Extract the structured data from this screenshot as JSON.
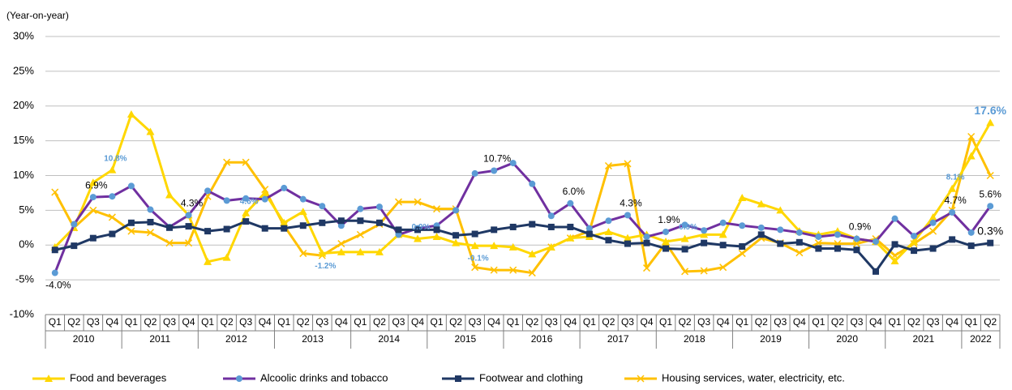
{
  "chart_data": {
    "type": "line",
    "y_axis_label": "(Year-on-year)",
    "categories": [
      "Q1",
      "Q2",
      "Q3",
      "Q4",
      "Q1",
      "Q2",
      "Q3",
      "Q4",
      "Q1",
      "Q2",
      "Q3",
      "Q4",
      "Q1",
      "Q2",
      "Q3",
      "Q4",
      "Q1",
      "Q2",
      "Q3",
      "Q4",
      "Q1",
      "Q2",
      "Q3",
      "Q4",
      "Q1",
      "Q2",
      "Q3",
      "Q4",
      "Q1",
      "Q2",
      "Q3",
      "Q4",
      "Q1",
      "Q2",
      "Q3",
      "Q4",
      "Q1",
      "Q2",
      "Q3",
      "Q4",
      "Q1",
      "Q2",
      "Q3",
      "Q4",
      "Q1",
      "Q2",
      "Q3",
      "Q4",
      "Q1",
      "Q2"
    ],
    "years": [
      "2010",
      "2011",
      "2012",
      "2013",
      "2014",
      "2015",
      "2016",
      "2017",
      "2018",
      "2019",
      "2020",
      "2021",
      "2022"
    ],
    "ylim": [
      -10,
      30
    ],
    "yticks": [
      {
        "value": -10,
        "label": "-10%"
      },
      {
        "value": -5,
        "label": "-5%"
      },
      {
        "value": 0,
        "label": "0%"
      },
      {
        "value": 5,
        "label": "5%"
      },
      {
        "value": 10,
        "label": "10%"
      },
      {
        "value": 15,
        "label": "15%"
      },
      {
        "value": 20,
        "label": "20%"
      },
      {
        "value": 25,
        "label": "25%"
      },
      {
        "value": 30,
        "label": "30%"
      }
    ],
    "grid": true,
    "legend": "bottom",
    "series": [
      {
        "name": "Food and beverages",
        "color": "#ffd700",
        "marker": "triangle",
        "label_color": "#5b9bd5",
        "values": [
          -0.3,
          2.5,
          9.0,
          10.8,
          18.8,
          16.3,
          7.2,
          4.3,
          -2.4,
          -1.8,
          4.6,
          7.5,
          3.2,
          4.8,
          -1.2,
          -1.0,
          -1.0,
          -1.0,
          1.5,
          0.9,
          1.2,
          0.3,
          -0.1,
          -0.1,
          -0.3,
          -1.3,
          -0.3,
          1.0,
          1.2,
          1.9,
          1.0,
          1.5,
          0.5,
          0.9,
          1.5,
          1.5,
          6.8,
          5.9,
          5.0,
          2.0,
          1.5,
          2.0,
          0.9,
          0.5,
          -2.3,
          0.5,
          4.0,
          8.1,
          12.8,
          17.6
        ],
        "value_labels": [
          null,
          null,
          null,
          "10.8%",
          null,
          null,
          null,
          null,
          null,
          null,
          "4.6%",
          null,
          null,
          null,
          "-1.2%",
          null,
          null,
          null,
          null,
          "0.9%",
          null,
          null,
          "-0.1%",
          null,
          null,
          null,
          null,
          null,
          null,
          null,
          null,
          null,
          null,
          "0.9%",
          null,
          null,
          null,
          null,
          null,
          null,
          null,
          null,
          null,
          null,
          null,
          null,
          null,
          "8.1%",
          null,
          "17.6%"
        ]
      },
      {
        "name": "Alcoolic drinks and tobacco",
        "color": "#7030a0",
        "marker": "circle",
        "marker_color": "#5b9bd5",
        "label_color": "#000000",
        "values": [
          -4.0,
          3.0,
          6.9,
          7.0,
          8.5,
          5.1,
          2.6,
          4.3,
          7.8,
          6.4,
          6.7,
          6.6,
          8.2,
          6.6,
          5.6,
          2.8,
          5.2,
          5.5,
          1.5,
          2.4,
          2.8,
          5.0,
          10.3,
          10.7,
          11.8,
          8.8,
          4.2,
          6.0,
          2.4,
          3.5,
          4.3,
          1.2,
          1.9,
          2.9,
          2.1,
          3.2,
          2.8,
          2.5,
          2.2,
          1.8,
          1.2,
          1.5,
          0.9,
          0.5,
          3.8,
          1.3,
          3.2,
          4.7,
          1.8,
          5.6
        ],
        "value_labels": [
          "-4.0%",
          null,
          "6.9%",
          null,
          null,
          null,
          null,
          "4.3%",
          null,
          null,
          null,
          null,
          null,
          null,
          null,
          null,
          null,
          null,
          null,
          null,
          null,
          null,
          null,
          "10.7%",
          null,
          null,
          null,
          "6.0%",
          null,
          null,
          "4.3%",
          null,
          "1.9%",
          null,
          null,
          null,
          null,
          null,
          null,
          null,
          null,
          null,
          "0.9%",
          null,
          null,
          null,
          null,
          "4.7%",
          null,
          "5.6%"
        ]
      },
      {
        "name": "Footwear and clothing",
        "color": "#1f3864",
        "marker": "square",
        "label_color": "#000000",
        "values": [
          -0.7,
          -0.1,
          1.0,
          1.6,
          3.2,
          3.3,
          2.5,
          2.7,
          2.0,
          2.3,
          3.4,
          2.4,
          2.4,
          2.8,
          3.2,
          3.5,
          3.5,
          3.2,
          2.2,
          2.2,
          2.2,
          1.4,
          1.6,
          2.2,
          2.6,
          3.0,
          2.6,
          2.6,
          1.6,
          0.7,
          0.2,
          0.3,
          -0.5,
          -0.6,
          0.3,
          0.0,
          -0.2,
          1.5,
          0.2,
          0.4,
          -0.5,
          -0.5,
          -0.7,
          -3.8,
          0.1,
          -0.8,
          -0.5,
          0.8,
          -0.1,
          0.3
        ],
        "value_labels": [
          null,
          null,
          null,
          null,
          null,
          null,
          null,
          null,
          null,
          null,
          null,
          null,
          null,
          null,
          null,
          null,
          null,
          null,
          null,
          null,
          null,
          null,
          null,
          null,
          null,
          null,
          null,
          null,
          null,
          null,
          null,
          null,
          null,
          null,
          null,
          null,
          null,
          null,
          null,
          null,
          null,
          null,
          null,
          null,
          null,
          null,
          null,
          null,
          null,
          "0.3%"
        ]
      },
      {
        "name": "Housing services, water, electricity, etc.",
        "color": "#ffc000",
        "marker": "x",
        "label_color": "#000000",
        "values": [
          7.6,
          2.5,
          5.0,
          4.0,
          2.0,
          1.8,
          0.3,
          0.3,
          7.0,
          11.9,
          11.9,
          8.0,
          2.8,
          -1.2,
          -1.5,
          0.2,
          1.5,
          3.0,
          6.2,
          6.2,
          5.2,
          5.2,
          -3.2,
          -3.6,
          -3.6,
          -4.0,
          -0.3,
          1.0,
          2.0,
          11.4,
          11.7,
          -3.3,
          0.3,
          -3.8,
          -3.7,
          -3.2,
          -1.2,
          1.0,
          0.3,
          -1.1,
          0.3,
          0.2,
          0.2,
          0.9,
          -1.5,
          0.2,
          2.0,
          5.0,
          15.6,
          10.0
        ]
      }
    ]
  }
}
